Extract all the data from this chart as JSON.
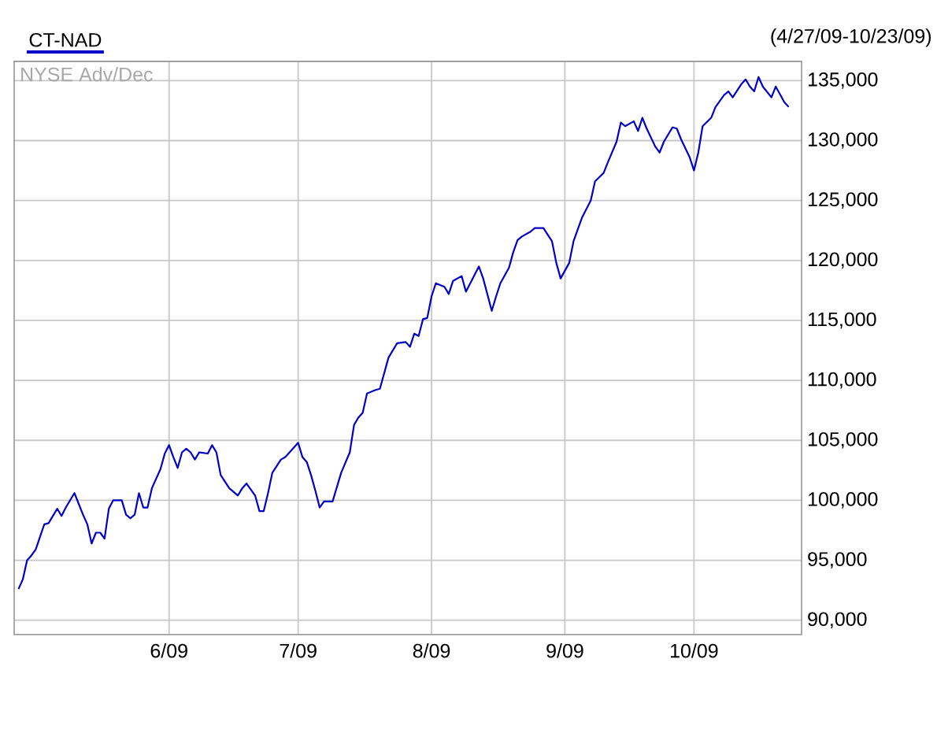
{
  "chart_data": {
    "type": "line",
    "title": "NYSE Adv/Dec",
    "subtitle": "(4/27/09-10/23/09)",
    "x": [
      "2009-04-27",
      "2009-04-28",
      "2009-04-29",
      "2009-04-30",
      "2009-05-01",
      "2009-05-03",
      "2009-05-04",
      "2009-05-05",
      "2009-05-06",
      "2009-05-07",
      "2009-05-08",
      "2009-05-10",
      "2009-05-11",
      "2009-05-12",
      "2009-05-13",
      "2009-05-14",
      "2009-05-15",
      "2009-05-16",
      "2009-05-17",
      "2009-05-18",
      "2009-05-19",
      "2009-05-21",
      "2009-05-22",
      "2009-05-23",
      "2009-05-24",
      "2009-05-25",
      "2009-05-26",
      "2009-05-27",
      "2009-05-28",
      "2009-05-30",
      "2009-05-31",
      "2009-06-01",
      "2009-06-02",
      "2009-06-03",
      "2009-06-04",
      "2009-06-05",
      "2009-06-06",
      "2009-06-07",
      "2009-06-08",
      "2009-06-10",
      "2009-06-11",
      "2009-06-12",
      "2009-06-13",
      "2009-06-15",
      "2009-06-17",
      "2009-06-18",
      "2009-06-19",
      "2009-06-21",
      "2009-06-22",
      "2009-06-23",
      "2009-06-24",
      "2009-06-25",
      "2009-06-27",
      "2009-06-28",
      "2009-06-29",
      "2009-07-01",
      "2009-07-02",
      "2009-07-03",
      "2009-07-04",
      "2009-07-05",
      "2009-07-06",
      "2009-07-07",
      "2009-07-09",
      "2009-07-11",
      "2009-07-13",
      "2009-07-14",
      "2009-07-15",
      "2009-07-16",
      "2009-07-17",
      "2009-07-19",
      "2009-07-20",
      "2009-07-21",
      "2009-07-22",
      "2009-07-24",
      "2009-07-26",
      "2009-07-27",
      "2009-07-28",
      "2009-07-29",
      "2009-07-30",
      "2009-07-31",
      "2009-08-01",
      "2009-08-02",
      "2009-08-04",
      "2009-08-05",
      "2009-08-06",
      "2009-08-08",
      "2009-08-09",
      "2009-08-10",
      "2009-08-12",
      "2009-08-13",
      "2009-08-15",
      "2009-08-16",
      "2009-08-17",
      "2009-08-19",
      "2009-08-20",
      "2009-08-21",
      "2009-08-22",
      "2009-08-24",
      "2009-08-25",
      "2009-08-27",
      "2009-08-29",
      "2009-08-30",
      "2009-08-31",
      "2009-09-02",
      "2009-09-03",
      "2009-09-05",
      "2009-09-07",
      "2009-09-08",
      "2009-09-10",
      "2009-09-11",
      "2009-09-13",
      "2009-09-14",
      "2009-09-15",
      "2009-09-17",
      "2009-09-18",
      "2009-09-19",
      "2009-09-20",
      "2009-09-22",
      "2009-09-23",
      "2009-09-24",
      "2009-09-26",
      "2009-09-27",
      "2009-09-28",
      "2009-09-30",
      "2009-10-01",
      "2009-10-02",
      "2009-10-03",
      "2009-10-05",
      "2009-10-06",
      "2009-10-08",
      "2009-10-09",
      "2009-10-10",
      "2009-10-12",
      "2009-10-13",
      "2009-10-14",
      "2009-10-15",
      "2009-10-16",
      "2009-10-17",
      "2009-10-19",
      "2009-10-20",
      "2009-10-22",
      "2009-10-23"
    ],
    "series": [
      {
        "name": "CT-NAD",
        "color": "#0000c8",
        "values": [
          92600,
          93400,
          95000,
          95400,
          95900,
          98000,
          98100,
          98700,
          99300,
          98700,
          99400,
          100600,
          99700,
          98800,
          98000,
          96400,
          97300,
          97300,
          96800,
          99300,
          100000,
          100000,
          98800,
          98500,
          98800,
          100600,
          99400,
          99400,
          101000,
          102600,
          103900,
          104600,
          103600,
          102700,
          104000,
          104300,
          104000,
          103400,
          104000,
          103900,
          104600,
          104000,
          102100,
          101000,
          100400,
          101000,
          101400,
          100400,
          99100,
          99100,
          100600,
          102300,
          103400,
          103600,
          104000,
          104800,
          103600,
          103200,
          102100,
          100800,
          99400,
          99900,
          99900,
          102300,
          104000,
          106300,
          106900,
          107300,
          108900,
          109200,
          109300,
          110600,
          111900,
          113100,
          113200,
          112800,
          113900,
          113700,
          115100,
          115200,
          117000,
          118100,
          117800,
          117200,
          118300,
          118700,
          117400,
          118100,
          119500,
          118500,
          115800,
          117000,
          118100,
          119400,
          120700,
          121700,
          122000,
          122400,
          122700,
          122700,
          121600,
          119800,
          118500,
          119800,
          121600,
          123600,
          125000,
          126600,
          127300,
          128200,
          129900,
          131500,
          131200,
          131600,
          130800,
          131900,
          131000,
          129500,
          129000,
          129900,
          131100,
          131000,
          130100,
          128600,
          127500,
          129000,
          131200,
          131900,
          132800,
          133800,
          134100,
          133600,
          134700,
          135100,
          134500,
          134100,
          135300,
          134500,
          133600,
          134500,
          133200,
          132800
        ]
      }
    ],
    "xlim": [
      "2009-04-26",
      "2009-10-26"
    ],
    "xticks": [
      {
        "value": "2009-06-01",
        "label": "6/09"
      },
      {
        "value": "2009-07-01",
        "label": "7/09"
      },
      {
        "value": "2009-08-01",
        "label": "8/09"
      },
      {
        "value": "2009-09-01",
        "label": "9/09"
      },
      {
        "value": "2009-10-01",
        "label": "10/09"
      }
    ],
    "ylim": [
      88800,
      136600
    ],
    "yticks": [
      {
        "value": 90000,
        "label": "90,000"
      },
      {
        "value": 95000,
        "label": "95,000"
      },
      {
        "value": 100000,
        "label": "100,000"
      },
      {
        "value": 105000,
        "label": "105,000"
      },
      {
        "value": 110000,
        "label": "110,000"
      },
      {
        "value": 115000,
        "label": "115,000"
      },
      {
        "value": 120000,
        "label": "120,000"
      },
      {
        "value": 125000,
        "label": "125,000"
      },
      {
        "value": 130000,
        "label": "130,000"
      },
      {
        "value": 135000,
        "label": "135,000"
      }
    ],
    "grid": true,
    "legend": "top left",
    "marker": "none",
    "line_style": "solid"
  }
}
